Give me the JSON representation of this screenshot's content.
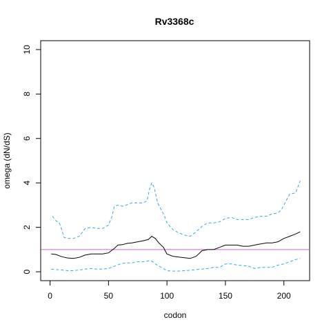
{
  "chart_data": {
    "type": "line",
    "title": "Rv3368c",
    "xlabel": "codon",
    "ylabel": "omega (dN/dS)",
    "xlim": [
      -8,
      222
    ],
    "ylim": [
      -0.4,
      10.4
    ],
    "xticks": [
      0,
      50,
      100,
      150,
      200
    ],
    "yticks": [
      0,
      2,
      4,
      6,
      8,
      10
    ],
    "grid": false,
    "reference_line": {
      "y": 1,
      "color": "#CC66CC"
    },
    "series": [
      {
        "style": "solid",
        "color": "#000000",
        "x": [
          1,
          5,
          10,
          15,
          20,
          25,
          30,
          35,
          40,
          45,
          50,
          55,
          58,
          62,
          66,
          70,
          75,
          80,
          84,
          87,
          90,
          93,
          97,
          100,
          105,
          110,
          115,
          120,
          125,
          130,
          135,
          140,
          145,
          150,
          155,
          160,
          165,
          170,
          175,
          180,
          185,
          190,
          195,
          200,
          205,
          210,
          214
        ],
        "y": [
          0.8,
          0.78,
          0.68,
          0.62,
          0.6,
          0.65,
          0.75,
          0.8,
          0.8,
          0.8,
          0.85,
          1.05,
          1.2,
          1.22,
          1.28,
          1.3,
          1.35,
          1.4,
          1.45,
          1.6,
          1.5,
          1.3,
          1.1,
          0.8,
          0.7,
          0.66,
          0.63,
          0.6,
          0.7,
          0.95,
          1.0,
          1.0,
          1.1,
          1.2,
          1.2,
          1.2,
          1.15,
          1.15,
          1.2,
          1.25,
          1.3,
          1.3,
          1.35,
          1.5,
          1.6,
          1.7,
          1.8
        ]
      },
      {
        "style": "dashed",
        "color": "#33A8E0",
        "x": [
          2,
          5,
          8,
          10,
          12,
          15,
          20,
          25,
          28,
          30,
          35,
          40,
          45,
          50,
          53,
          55,
          58,
          62,
          65,
          70,
          75,
          80,
          83,
          85,
          87,
          89,
          92,
          95,
          98,
          100,
          105,
          110,
          115,
          120,
          125,
          130,
          135,
          140,
          145,
          150,
          155,
          160,
          165,
          170,
          175,
          180,
          185,
          190,
          195,
          198,
          200,
          205,
          210,
          214
        ],
        "y": [
          2.5,
          2.3,
          2.2,
          1.9,
          1.55,
          1.5,
          1.5,
          1.6,
          1.8,
          1.95,
          2.0,
          1.95,
          1.95,
          2.1,
          2.5,
          2.95,
          3.0,
          2.95,
          3.0,
          3.1,
          3.1,
          3.1,
          3.2,
          3.7,
          4.0,
          3.8,
          3.1,
          2.8,
          2.5,
          2.2,
          1.9,
          1.75,
          1.65,
          1.6,
          1.8,
          2.05,
          2.2,
          2.2,
          2.25,
          2.4,
          2.45,
          2.35,
          2.35,
          2.35,
          2.45,
          2.5,
          2.5,
          2.6,
          2.65,
          2.8,
          3.0,
          3.5,
          3.55,
          4.1
        ]
      },
      {
        "style": "dashed",
        "color": "#33A8E0",
        "x": [
          1,
          5,
          10,
          15,
          20,
          25,
          30,
          35,
          40,
          45,
          50,
          55,
          60,
          65,
          70,
          75,
          80,
          85,
          88,
          90,
          95,
          100,
          105,
          110,
          115,
          120,
          125,
          130,
          135,
          140,
          145,
          150,
          155,
          160,
          165,
          170,
          175,
          180,
          185,
          190,
          195,
          200,
          205,
          210,
          214
        ],
        "y": [
          0.12,
          0.1,
          0.08,
          0.05,
          0.05,
          0.08,
          0.12,
          0.15,
          0.12,
          0.12,
          0.15,
          0.25,
          0.35,
          0.4,
          0.4,
          0.45,
          0.45,
          0.5,
          0.45,
          0.35,
          0.2,
          0.05,
          0.03,
          0.03,
          0.05,
          0.07,
          0.1,
          0.12,
          0.15,
          0.2,
          0.2,
          0.35,
          0.35,
          0.3,
          0.28,
          0.25,
          0.15,
          0.2,
          0.2,
          0.2,
          0.3,
          0.35,
          0.45,
          0.55,
          0.6
        ]
      }
    ]
  }
}
